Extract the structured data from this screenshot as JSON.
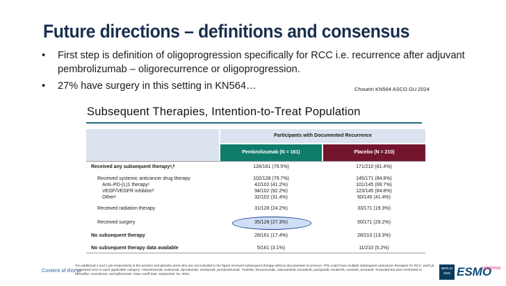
{
  "slide": {
    "title": "Future directions – definitions and consensus",
    "bullets": [
      "First step is definition of oligoprogression specifically for RCC i.e. recurrence after adjuvant pembrolizumab – oligorecurrence or oligoprogression.",
      "27% have surgery in this setting in KN564…"
    ],
    "bullet_symbol": "•",
    "citation": "Choueiri KN564 ASCO GU 2024"
  },
  "table": {
    "title": "Subsequent Therapies, Intention-to-Treat Population",
    "group_header": "Participants with Documented Recurrence",
    "columns": [
      "Pembrolizumab (N = 161)",
      "Placebo (N = 210)"
    ],
    "rows": [
      {
        "label": "Received any subsequent therapyᵃ,ᵇ",
        "pembro": "128/161 (79.5%)",
        "placebo": "171/210 (81.4%)"
      },
      {
        "label": "Received systemic anticancer drug therapy",
        "pembro": "102/128 (79.7%)",
        "placebo": "145/171 (84.8%)"
      },
      {
        "label": "Anti–PD-(L)1 therapyᶜ",
        "pembro": "42/102 (41.2%)",
        "placebo": "101/145 (69.7%)"
      },
      {
        "label": "VEGF/VEGFR inhibitorᵈ",
        "pembro": "94/102 (92.2%)",
        "placebo": "123/145 (84.8%)"
      },
      {
        "label": "Otherᵉ",
        "pembro": "32/102 (31.4%)",
        "placebo": "60/145 (41.4%)"
      },
      {
        "label": "Received radiation therapy",
        "pembro": "31/128 (24.2%)",
        "placebo": "33/171 (19.3%)"
      },
      {
        "label": "Received surgery",
        "pembro": "35/128 (27.3%)",
        "placebo": "50/171 (29.2%)"
      },
      {
        "label": "No subsequent therapy",
        "pembro": "28/161 (17.4%)",
        "placebo": "28/210 (13.3%)"
      },
      {
        "label": "No subsequent therapy data available",
        "pembro": "5/161 (3.1%)",
        "placebo": "11/210 (5.2%)"
      }
    ]
  },
  "footer": {
    "content_note": "Content of this pr",
    "footnote": "ᵃAn additional 4 and 1 pts respectively in the pembro and placebo arms who are not included in the figure received subsequent therapy without documented recurrence. ᵇPts could have multiple subsequent anticancer therapies for RCC; each pt is counted once in each applicable category. ᶜAtezolizumab, avelumab, durvalumab, nivolumab, pembrolizumab. ᵈAxitinib, bevacizumab, cabozantinib, lenvatinib, pazopanib, sorafenib, sunitinib, tivozanib. ᵉIncluded but was not limited to belzutifan, everolimus, and ipilimumab. Data cutoff date: September 15, 2023.",
    "logo": {
      "city": "BERLIN",
      "year": "2025",
      "brand": "ESMO",
      "suffix": "congress"
    }
  },
  "colors": {
    "title": "#1a2f4e",
    "pembro_header": "#0f7c6b",
    "placebo_header": "#74152e",
    "header_bg": "#dbe3ee",
    "highlight": "#1e3f8f"
  }
}
